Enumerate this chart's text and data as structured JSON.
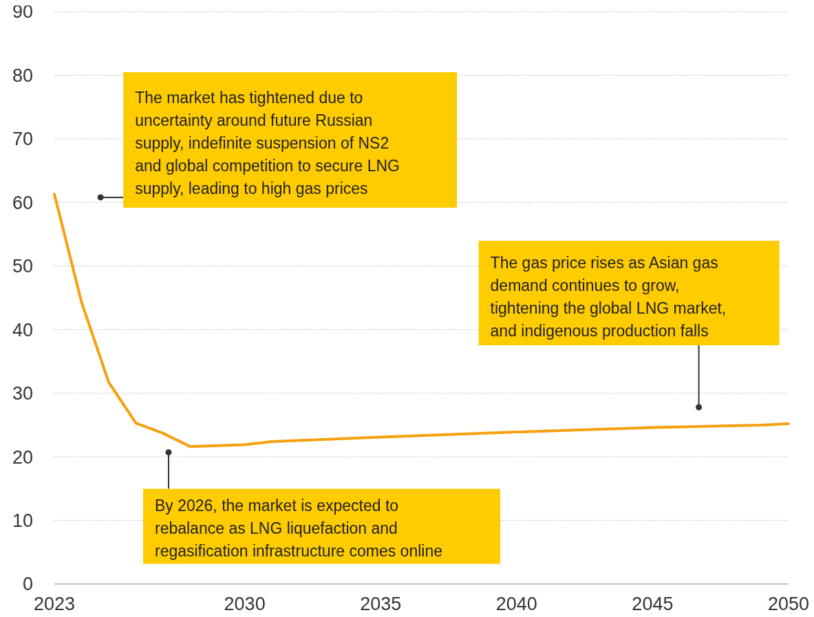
{
  "chart_data": {
    "type": "line",
    "x": [
      2023,
      2024,
      2025,
      2026,
      2027,
      2028,
      2030,
      2031,
      2035,
      2040,
      2045,
      2049,
      2050
    ],
    "series": [
      {
        "color": "#f5a00f",
        "values": [
          61.3,
          44.3,
          31.7,
          25.3,
          23.7,
          21.6,
          21.9,
          22.4,
          23.1,
          23.9,
          24.6,
          25.0,
          25.2
        ]
      }
    ],
    "xlim": [
      2023,
      2050
    ],
    "xticks": [
      2023,
      2030,
      2035,
      2040,
      2045,
      2050
    ],
    "ylim": [
      0,
      90
    ],
    "yticks": [
      0,
      10,
      20,
      30,
      40,
      50,
      60,
      70,
      80,
      90
    ],
    "grid": "y",
    "marker": "none",
    "line_style": "solid",
    "annotations": [
      {
        "text": "The market has tightened due to uncertainty around future Russian supply, indefinite suspension of NS2 and global competition to secure LNG supply, leading to high gas prices",
        "x": 2024.7,
        "y": 60.8
      },
      {
        "text": "By 2026, the market is expected to rebalance as LNG liquefaction and regasification infrastructure comes online",
        "x": 2027.2,
        "y": 20.7
      },
      {
        "text": "The gas price rises as Asian gas demand continues to grow, tightening the global LNG market, and indigenous production falls",
        "x": 2046.7,
        "y": 27.8
      }
    ]
  }
}
